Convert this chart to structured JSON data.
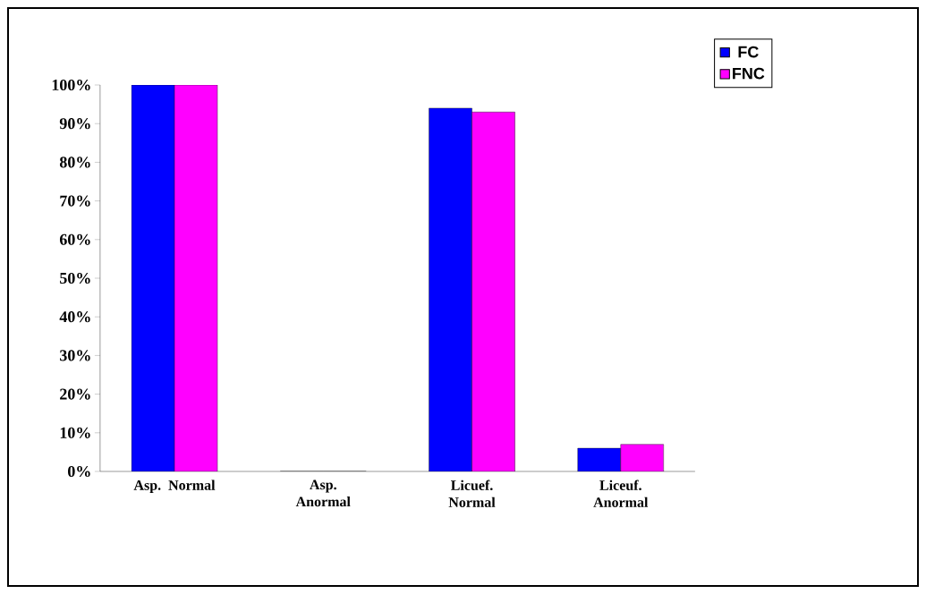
{
  "chart_data": {
    "type": "bar",
    "categories": [
      "Asp. Normal",
      "Asp. Anormal",
      "Licuef. Normal",
      "Liceuf. Anormal"
    ],
    "series": [
      {
        "name": "FC",
        "color": "#0000ff",
        "values": [
          100,
          0,
          94,
          6
        ]
      },
      {
        "name": "FNC",
        "color": "#ff00ff",
        "values": [
          100,
          0,
          93,
          7
        ]
      }
    ],
    "ylim": [
      0,
      100
    ],
    "yticks": [
      {
        "value": 0,
        "label": "0%"
      },
      {
        "value": 10,
        "label": "10%"
      },
      {
        "value": 20,
        "label": "20%"
      },
      {
        "value": 30,
        "label": "30%"
      },
      {
        "value": 40,
        "label": "40%"
      },
      {
        "value": 50,
        "label": "50%"
      },
      {
        "value": 60,
        "label": "60%"
      },
      {
        "value": 70,
        "label": "70%"
      },
      {
        "value": 80,
        "label": "80%"
      },
      {
        "value": 90,
        "label": "90%"
      },
      {
        "value": 100,
        "label": "100%"
      }
    ],
    "legend": "top right",
    "grid": false
  }
}
